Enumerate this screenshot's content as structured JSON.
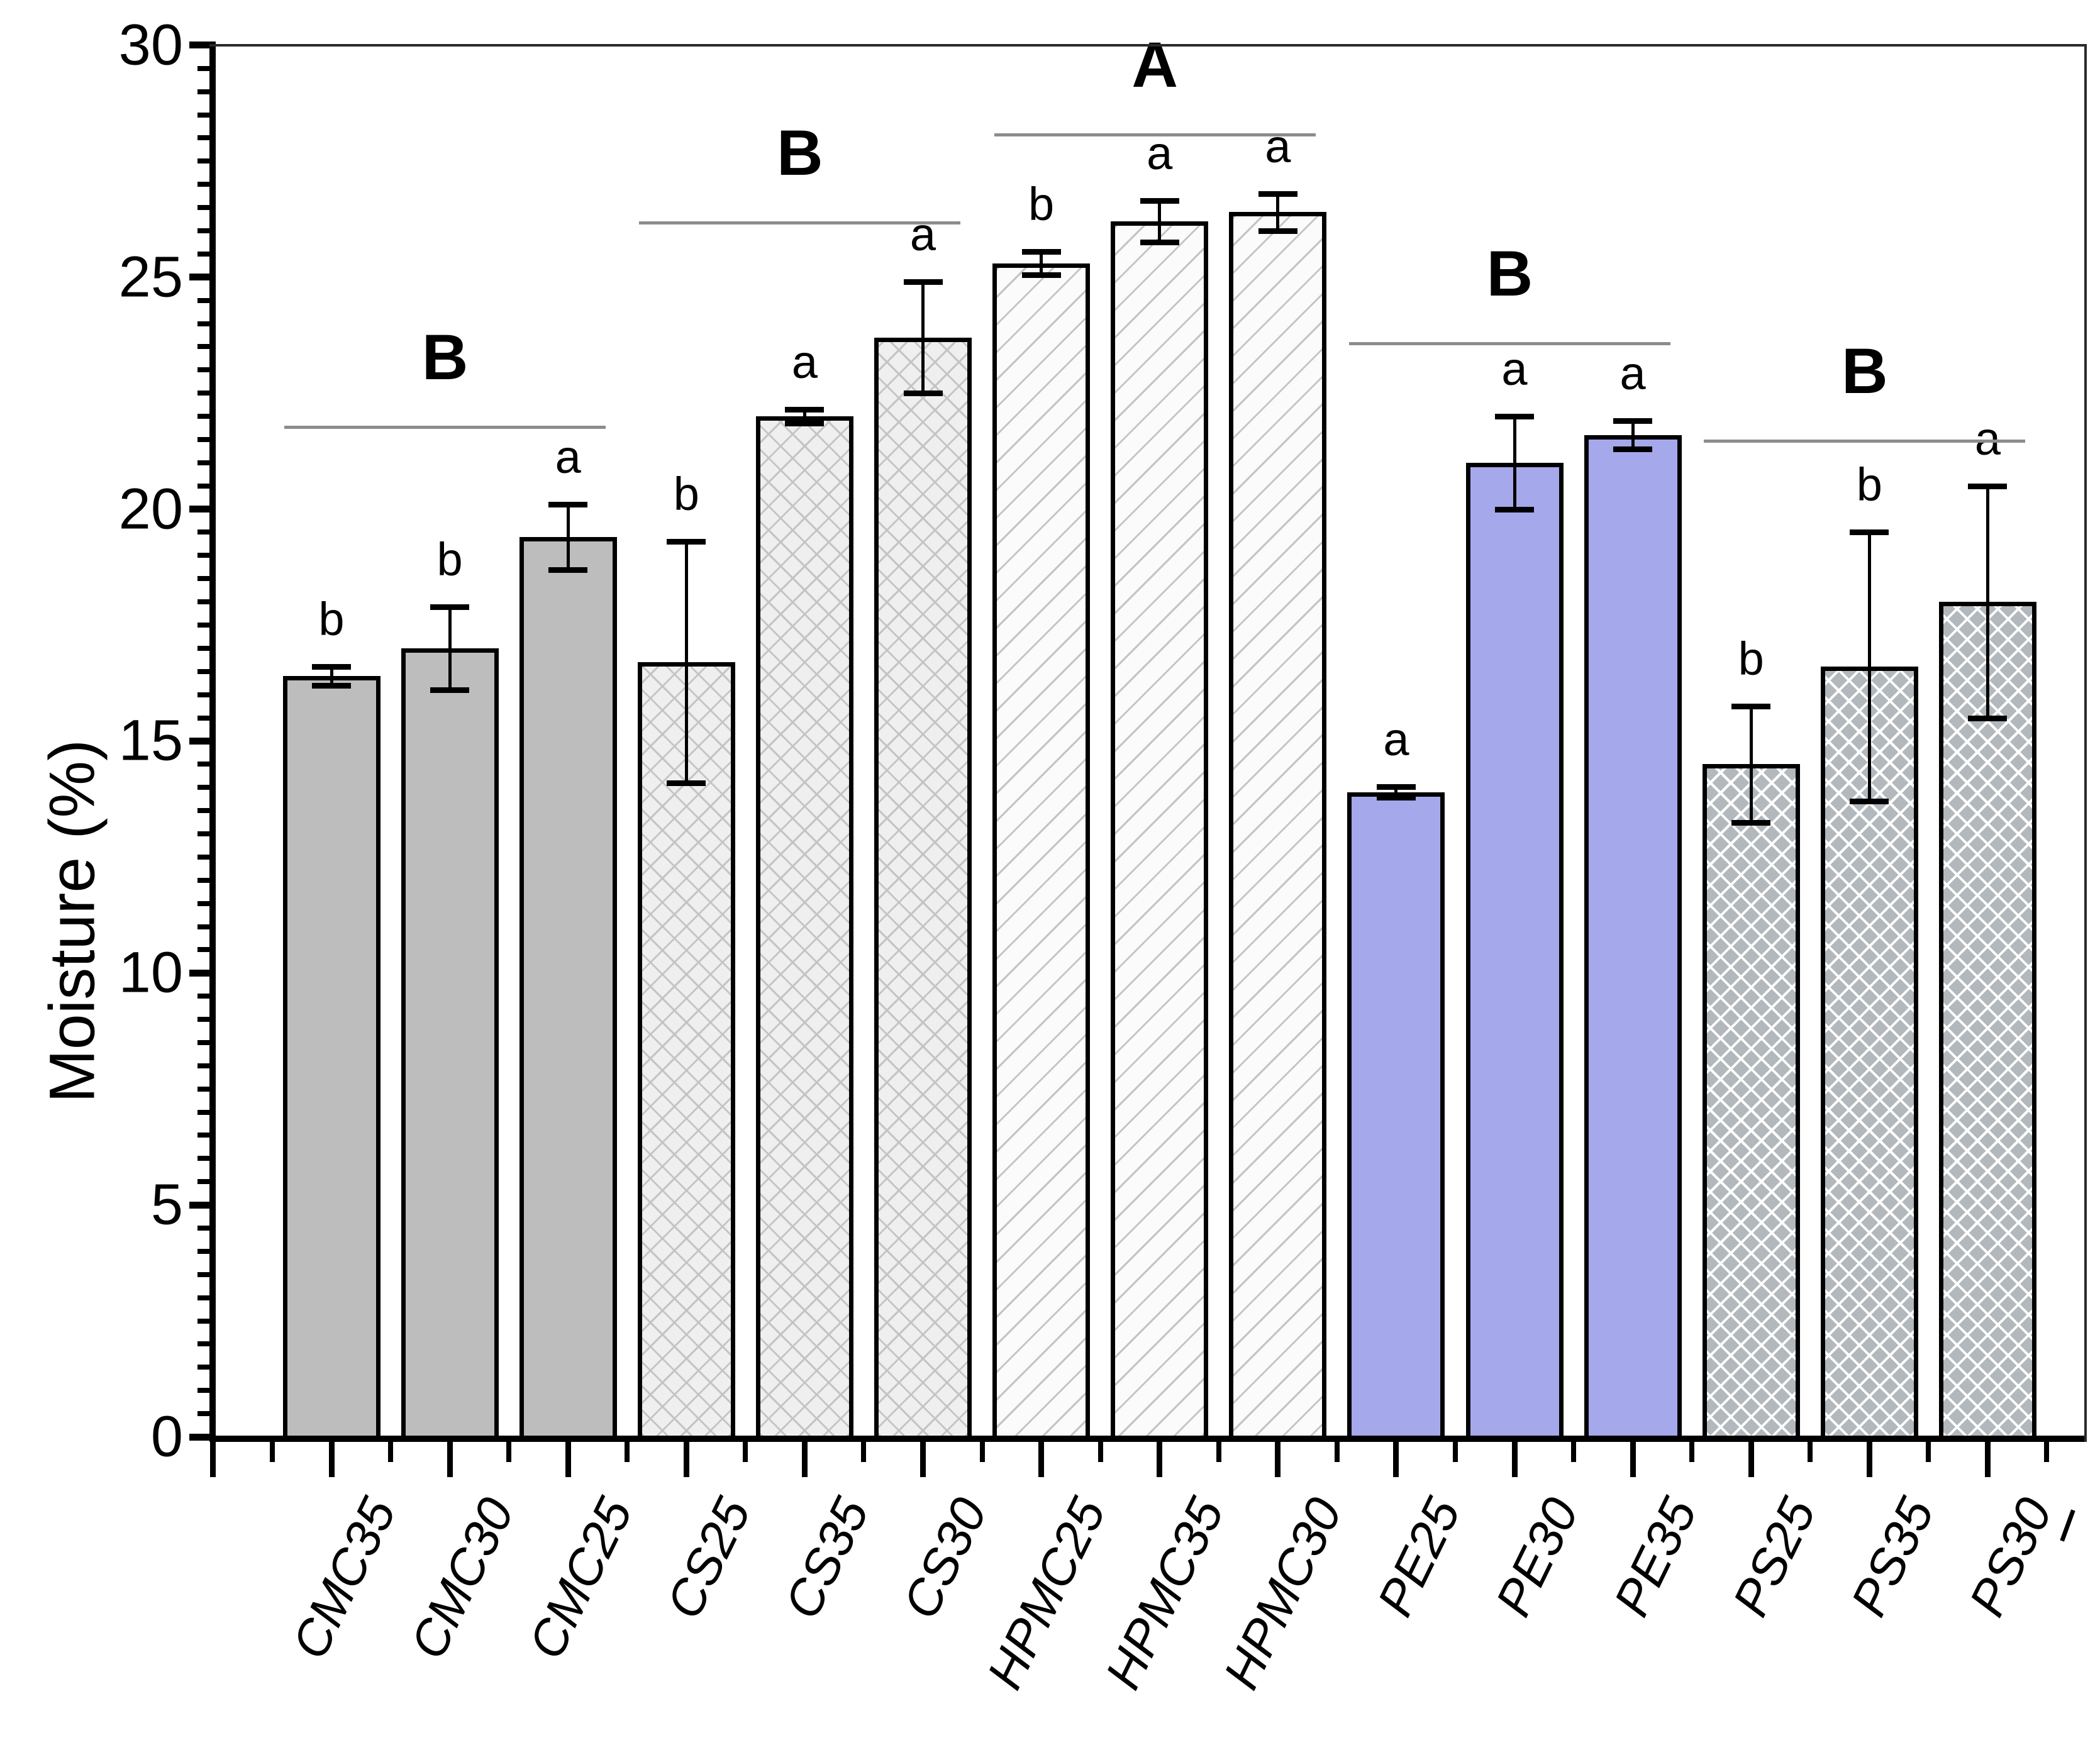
{
  "axis": {
    "ylabel": "Moisture (%)",
    "ytick_labels": [
      "0",
      "5",
      "10",
      "15",
      "20",
      "25",
      "30"
    ]
  },
  "chart_data": {
    "type": "bar",
    "title": "",
    "xlabel": "",
    "ylabel": "Moisture (%)",
    "ylim": [
      0,
      30
    ],
    "y_major_step": 5,
    "y_minor_step": 0.5,
    "grid": false,
    "legend": "none",
    "categories": [
      "CMC35",
      "CMC30",
      "CMC25",
      "CS25",
      "CS35",
      "CS30",
      "HPMC25",
      "HPMC35",
      "HPMC30",
      "PE25",
      "PE30",
      "PE35",
      "PS25",
      "PS35",
      "PS30"
    ],
    "values": [
      16.4,
      17.0,
      19.4,
      16.7,
      22.0,
      23.7,
      25.3,
      26.2,
      26.4,
      13.9,
      21.0,
      21.6,
      14.5,
      16.6,
      18.0
    ],
    "errors": [
      0.2,
      0.9,
      0.7,
      2.6,
      0.15,
      1.2,
      0.25,
      0.45,
      0.4,
      0.12,
      1.0,
      0.3,
      1.25,
      2.9,
      2.5
    ],
    "sig_letters": [
      "b",
      "b",
      "a",
      "b",
      "a",
      "a",
      "b",
      "a",
      "a",
      "a",
      "a",
      "a",
      "b",
      "b",
      "a"
    ],
    "bar_styles": [
      "solid-gray",
      "solid-gray",
      "solid-gray",
      "crosshatch-light",
      "crosshatch-light",
      "crosshatch-light",
      "diagonal-hatch",
      "diagonal-hatch",
      "diagonal-hatch",
      "solid-blue",
      "solid-blue",
      "solid-blue",
      "crosshatch-gray",
      "crosshatch-gray",
      "crosshatch-gray"
    ],
    "groups": [
      {
        "label": "B",
        "first_bar": 0,
        "last_bar": 2,
        "line_y": 21.8
      },
      {
        "label": "B",
        "first_bar": 3,
        "last_bar": 5,
        "line_y": 26.2
      },
      {
        "label": "A",
        "first_bar": 6,
        "last_bar": 8,
        "line_y": 28.1
      },
      {
        "label": "B",
        "first_bar": 9,
        "last_bar": 11,
        "line_y": 23.6
      },
      {
        "label": "B",
        "first_bar": 12,
        "last_bar": 14,
        "line_y": 21.5
      }
    ],
    "colors": {
      "bar_gray": "#bdbdbd",
      "bar_blue": "#a6a8ec",
      "hatch_line": "#c4c4c4",
      "crosshatch_light_bg": "#efefef",
      "diagonal_bg": "#fbfbfb",
      "crosshatch_gray_bg": "#b2b8bc",
      "crosshatch_gray_line": "#ffffff",
      "group_line": "#8c8c8c",
      "border": "#000000"
    }
  }
}
